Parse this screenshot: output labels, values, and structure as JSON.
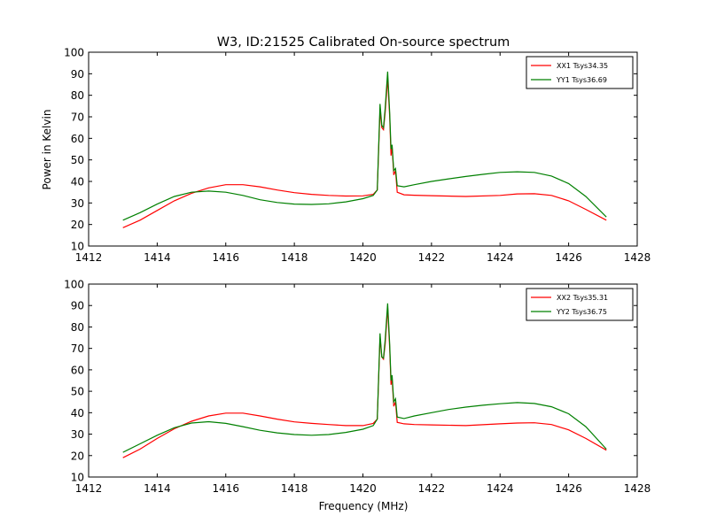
{
  "title": "W3, ID:21525 Calibrated On-source spectrum",
  "xlabel": "Frequency (MHz)",
  "ylabel": "Power in Kelvin",
  "chart_data": [
    {
      "type": "line",
      "title": "W3, ID:21525 Calibrated On-source spectrum",
      "xlabel": "",
      "ylabel": "Power in Kelvin",
      "xlim": [
        1412,
        1428
      ],
      "ylim": [
        10,
        100
      ],
      "xticks": [
        1412,
        1414,
        1416,
        1418,
        1420,
        1422,
        1424,
        1426,
        1428
      ],
      "yticks": [
        10,
        20,
        30,
        40,
        50,
        60,
        70,
        80,
        90,
        100
      ],
      "grid": false,
      "legend_position": "top-right",
      "series": [
        {
          "name": "XX1 Tsys34.35",
          "color": "#ff0000",
          "points": [
            [
              1413.0,
              18.5
            ],
            [
              1413.5,
              22.0
            ],
            [
              1414.0,
              26.5
            ],
            [
              1414.5,
              31.0
            ],
            [
              1415.0,
              34.5
            ],
            [
              1415.5,
              37.0
            ],
            [
              1416.0,
              38.5
            ],
            [
              1416.5,
              38.5
            ],
            [
              1417.0,
              37.5
            ],
            [
              1417.5,
              36.0
            ],
            [
              1418.0,
              34.8
            ],
            [
              1418.5,
              34.0
            ],
            [
              1419.0,
              33.5
            ],
            [
              1419.5,
              33.2
            ],
            [
              1420.0,
              33.3
            ],
            [
              1420.3,
              34.0
            ],
            [
              1420.42,
              36.0
            ],
            [
              1420.5,
              73.0
            ],
            [
              1420.55,
              65.0
            ],
            [
              1420.6,
              64.0
            ],
            [
              1420.65,
              72.0
            ],
            [
              1420.72,
              88.0
            ],
            [
              1420.78,
              70.0
            ],
            [
              1420.82,
              52.0
            ],
            [
              1420.85,
              56.0
            ],
            [
              1420.9,
              43.0
            ],
            [
              1420.95,
              45.0
            ],
            [
              1421.0,
              35.0
            ],
            [
              1421.2,
              33.8
            ],
            [
              1421.5,
              33.6
            ],
            [
              1422.0,
              33.4
            ],
            [
              1423.0,
              33.0
            ],
            [
              1424.0,
              33.5
            ],
            [
              1424.5,
              34.2
            ],
            [
              1425.0,
              34.3
            ],
            [
              1425.5,
              33.5
            ],
            [
              1426.0,
              31.0
            ],
            [
              1426.5,
              27.0
            ],
            [
              1427.1,
              22.0
            ]
          ]
        },
        {
          "name": "YY1 Tsys36.69",
          "color": "#008000",
          "points": [
            [
              1413.0,
              22.0
            ],
            [
              1413.5,
              25.5
            ],
            [
              1414.0,
              29.5
            ],
            [
              1414.5,
              33.0
            ],
            [
              1415.0,
              35.0
            ],
            [
              1415.5,
              35.5
            ],
            [
              1416.0,
              35.0
            ],
            [
              1416.5,
              33.5
            ],
            [
              1417.0,
              31.5
            ],
            [
              1417.5,
              30.2
            ],
            [
              1418.0,
              29.5
            ],
            [
              1418.5,
              29.3
            ],
            [
              1419.0,
              29.6
            ],
            [
              1419.5,
              30.5
            ],
            [
              1420.0,
              32.0
            ],
            [
              1420.3,
              33.5
            ],
            [
              1420.42,
              36.0
            ],
            [
              1420.5,
              76.0
            ],
            [
              1420.55,
              66.0
            ],
            [
              1420.6,
              65.0
            ],
            [
              1420.65,
              74.0
            ],
            [
              1420.72,
              91.0
            ],
            [
              1420.78,
              72.0
            ],
            [
              1420.82,
              55.0
            ],
            [
              1420.85,
              57.0
            ],
            [
              1420.9,
              45.0
            ],
            [
              1420.95,
              46.0
            ],
            [
              1421.0,
              38.0
            ],
            [
              1421.2,
              37.5
            ],
            [
              1421.5,
              38.5
            ],
            [
              1422.0,
              40.0
            ],
            [
              1422.5,
              41.2
            ],
            [
              1423.0,
              42.3
            ],
            [
              1423.5,
              43.3
            ],
            [
              1424.0,
              44.2
            ],
            [
              1424.5,
              44.5
            ],
            [
              1425.0,
              44.2
            ],
            [
              1425.5,
              42.5
            ],
            [
              1426.0,
              39.0
            ],
            [
              1426.5,
              33.0
            ],
            [
              1427.1,
              23.5
            ]
          ]
        }
      ]
    },
    {
      "type": "line",
      "title": "",
      "xlabel": "Frequency (MHz)",
      "ylabel": "",
      "xlim": [
        1412,
        1428
      ],
      "ylim": [
        10,
        100
      ],
      "xticks": [
        1412,
        1414,
        1416,
        1418,
        1420,
        1422,
        1424,
        1426,
        1428
      ],
      "yticks": [
        10,
        20,
        30,
        40,
        50,
        60,
        70,
        80,
        90,
        100
      ],
      "grid": false,
      "legend_position": "top-right",
      "series": [
        {
          "name": "XX2 Tsys35.31",
          "color": "#ff0000",
          "points": [
            [
              1413.0,
              19.0
            ],
            [
              1413.5,
              23.0
            ],
            [
              1414.0,
              28.0
            ],
            [
              1414.5,
              32.5
            ],
            [
              1415.0,
              36.0
            ],
            [
              1415.5,
              38.5
            ],
            [
              1416.0,
              39.8
            ],
            [
              1416.5,
              39.8
            ],
            [
              1417.0,
              38.5
            ],
            [
              1417.5,
              37.0
            ],
            [
              1418.0,
              35.7
            ],
            [
              1418.5,
              35.0
            ],
            [
              1419.0,
              34.5
            ],
            [
              1419.5,
              34.0
            ],
            [
              1420.0,
              34.0
            ],
            [
              1420.3,
              35.0
            ],
            [
              1420.42,
              37.0
            ],
            [
              1420.5,
              75.0
            ],
            [
              1420.55,
              66.0
            ],
            [
              1420.6,
              65.0
            ],
            [
              1420.65,
              72.0
            ],
            [
              1420.72,
              89.0
            ],
            [
              1420.78,
              70.0
            ],
            [
              1420.82,
              53.0
            ],
            [
              1420.85,
              56.0
            ],
            [
              1420.9,
              43.0
            ],
            [
              1420.95,
              45.0
            ],
            [
              1421.0,
              35.5
            ],
            [
              1421.2,
              34.8
            ],
            [
              1421.5,
              34.5
            ],
            [
              1422.0,
              34.3
            ],
            [
              1423.0,
              34.0
            ],
            [
              1424.0,
              34.8
            ],
            [
              1424.5,
              35.2
            ],
            [
              1425.0,
              35.3
            ],
            [
              1425.5,
              34.5
            ],
            [
              1426.0,
              32.0
            ],
            [
              1426.5,
              28.0
            ],
            [
              1427.1,
              22.5
            ]
          ]
        },
        {
          "name": "YY2 Tsys36.75",
          "color": "#008000",
          "points": [
            [
              1413.0,
              21.5
            ],
            [
              1413.5,
              25.5
            ],
            [
              1414.0,
              29.5
            ],
            [
              1414.5,
              33.0
            ],
            [
              1415.0,
              35.2
            ],
            [
              1415.5,
              35.8
            ],
            [
              1416.0,
              35.0
            ],
            [
              1416.5,
              33.5
            ],
            [
              1417.0,
              31.8
            ],
            [
              1417.5,
              30.6
            ],
            [
              1418.0,
              29.8
            ],
            [
              1418.5,
              29.5
            ],
            [
              1419.0,
              29.8
            ],
            [
              1419.5,
              30.8
            ],
            [
              1420.0,
              32.3
            ],
            [
              1420.3,
              34.0
            ],
            [
              1420.42,
              37.0
            ],
            [
              1420.5,
              77.0
            ],
            [
              1420.55,
              66.0
            ],
            [
              1420.6,
              65.5
            ],
            [
              1420.65,
              74.0
            ],
            [
              1420.72,
              91.0
            ],
            [
              1420.78,
              72.0
            ],
            [
              1420.82,
              55.0
            ],
            [
              1420.85,
              57.5
            ],
            [
              1420.9,
              45.0
            ],
            [
              1420.95,
              46.5
            ],
            [
              1421.0,
              38.0
            ],
            [
              1421.2,
              37.3
            ],
            [
              1421.5,
              38.5
            ],
            [
              1422.0,
              40.0
            ],
            [
              1422.5,
              41.5
            ],
            [
              1423.0,
              42.6
            ],
            [
              1423.5,
              43.5
            ],
            [
              1424.0,
              44.2
            ],
            [
              1424.5,
              44.7
            ],
            [
              1425.0,
              44.3
            ],
            [
              1425.5,
              42.8
            ],
            [
              1426.0,
              39.5
            ],
            [
              1426.5,
              33.5
            ],
            [
              1427.1,
              23.0
            ]
          ]
        }
      ]
    }
  ]
}
